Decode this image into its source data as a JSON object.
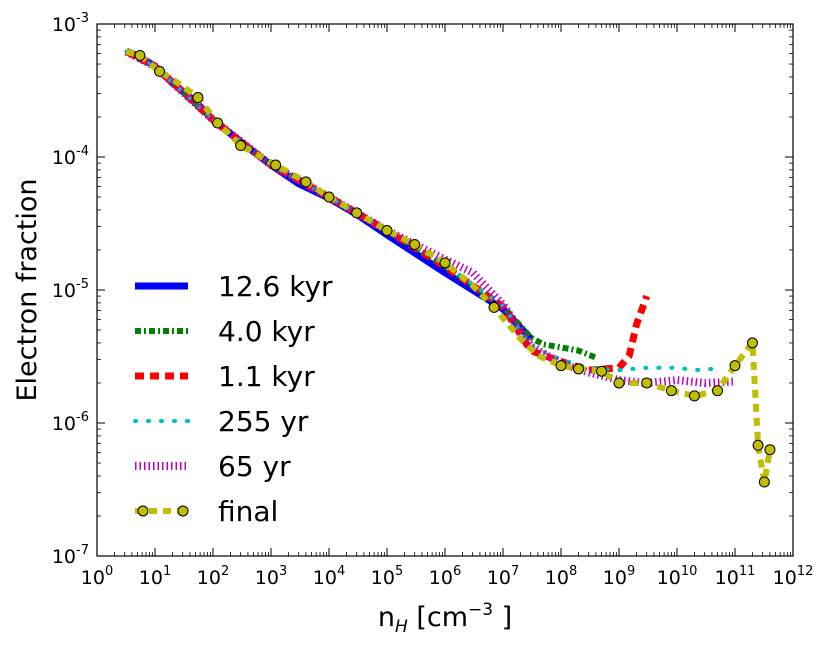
{
  "chart_data": {
    "type": "line",
    "title": "",
    "xlabel": {
      "base": "n",
      "sub": "H",
      "unit_open": " [cm",
      "unit_exp": "−3",
      "unit_close": " ]"
    },
    "ylabel": "Electron fraction",
    "x_scale": "log",
    "y_scale": "log",
    "xlim": [
      1,
      1000000000000.0
    ],
    "ylim": [
      1e-07,
      0.001
    ],
    "x_ticks": [
      {
        "base": "10",
        "exp": "0"
      },
      {
        "base": "10",
        "exp": "1"
      },
      {
        "base": "10",
        "exp": "2"
      },
      {
        "base": "10",
        "exp": "3"
      },
      {
        "base": "10",
        "exp": "4"
      },
      {
        "base": "10",
        "exp": "5"
      },
      {
        "base": "10",
        "exp": "6"
      },
      {
        "base": "10",
        "exp": "7"
      },
      {
        "base": "10",
        "exp": "8"
      },
      {
        "base": "10",
        "exp": "9"
      },
      {
        "base": "10",
        "exp": "10"
      },
      {
        "base": "10",
        "exp": "11"
      },
      {
        "base": "10",
        "exp": "12"
      }
    ],
    "y_ticks": [
      {
        "base": "10",
        "exp": "-7"
      },
      {
        "base": "10",
        "exp": "-6"
      },
      {
        "base": "10",
        "exp": "-5"
      },
      {
        "base": "10",
        "exp": "-4"
      },
      {
        "base": "10",
        "exp": "-3"
      }
    ],
    "legend_position": "lower-left",
    "series": [
      {
        "name": "12.6 kyr",
        "label": "12.6 kyr",
        "color": "#0000ff",
        "style": "solid",
        "x": [
          3.2,
          5,
          10,
          20,
          50,
          100,
          300,
          1000,
          3000,
          10000,
          30000,
          100000,
          300000,
          1000000,
          3000000,
          10000000,
          30000000
        ],
        "y": [
          0.00062,
          0.00058,
          0.00048,
          0.00036,
          0.00026,
          0.00019,
          0.00013,
          8.7e-05,
          6.3e-05,
          4.9e-05,
          3.7e-05,
          2.6e-05,
          1.9e-05,
          1.35e-05,
          1e-05,
          7.2e-06,
          4.3e-06
        ]
      },
      {
        "name": "4.0 kyr",
        "label": "4.0 kyr",
        "color": "#007f00",
        "style": "dashdot",
        "x": [
          3.2,
          10,
          100,
          1000,
          10000,
          100000,
          1000000,
          10000000,
          30000000,
          50000000,
          100000000,
          200000000,
          400000000
        ],
        "y": [
          0.00062,
          0.00048,
          0.00019,
          8.7e-05,
          5e-05,
          2.8e-05,
          1.5e-05,
          7.5e-06,
          4.4e-06,
          3.9e-06,
          3.7e-06,
          3.5e-06,
          3.1e-06
        ]
      },
      {
        "name": "1.1 kyr",
        "label": "1.1 kyr",
        "color": "#ff0000",
        "style": "dashed",
        "x": [
          3.2,
          10,
          100,
          1000,
          10000,
          100000,
          1000000,
          10000000,
          30000000,
          100000000,
          300000000,
          1000000000,
          1500000000,
          2000000000,
          3000000000
        ],
        "y": [
          0.00062,
          0.00048,
          0.00019,
          8.7e-05,
          5e-05,
          2.8e-05,
          1.5e-05,
          7.5e-06,
          3.5e-06,
          2.9e-06,
          2.5e-06,
          2.6e-06,
          3.2e-06,
          5.5e-06,
          9e-06
        ]
      },
      {
        "name": "255 yr",
        "label": "255 yr",
        "color": "#00bfbf",
        "style": "dotted",
        "x": [
          3.2,
          10,
          100,
          1000,
          10000,
          100000,
          1000000,
          10000000,
          30000000,
          100000000,
          300000000,
          1000000000,
          3000000000,
          10000000000,
          20000000000,
          40000000000,
          60000000000
        ],
        "y": [
          0.00062,
          0.00048,
          0.00019,
          8.7e-05,
          5e-05,
          2.8e-05,
          1.55e-05,
          7.6e-06,
          3.8e-06,
          3e-06,
          2.6e-06,
          2.5e-06,
          2.6e-06,
          2.6e-06,
          2.5e-06,
          2.55e-06,
          2.5e-06
        ]
      },
      {
        "name": "65 yr",
        "label": "65 yr",
        "color": "#bf00bf",
        "style": "hatched",
        "x": [
          3.2,
          10,
          100,
          1000,
          10000,
          100000,
          1000000,
          3000000,
          10000000,
          30000000,
          100000000,
          300000000,
          1000000000,
          3000000000,
          10000000000,
          30000000000,
          100000000000
        ],
        "y": [
          0.00062,
          0.00048,
          0.00019,
          8.7e-05,
          5e-05,
          2.8e-05,
          1.7e-05,
          1.35e-05,
          7.8e-06,
          3.8e-06,
          2.8e-06,
          2.4e-06,
          2.1e-06,
          2e-06,
          2.1e-06,
          2e-06,
          2.05e-06
        ]
      },
      {
        "name": "final",
        "label": "final",
        "color": "#bfbf00",
        "marker_color": "#bfbf00",
        "style": "dashed-circles",
        "x": [
          3.2,
          5.5,
          12,
          25,
          55,
          120,
          300,
          1200,
          4000,
          10000,
          30000,
          100000,
          300000,
          1000000,
          3000000,
          7000000,
          20000000,
          40000000,
          100000000,
          200000000,
          500000000,
          1000000000,
          3000000000,
          8000000000,
          20000000000,
          50000000000,
          100000000000,
          200000000000,
          250000000000,
          320000000000,
          400000000000
        ],
        "y": [
          0.00062,
          0.00058,
          0.00044,
          0.00036,
          0.00028,
          0.00018,
          0.000122,
          8.7e-05,
          6.5e-05,
          5e-05,
          3.8e-05,
          2.8e-05,
          2.2e-05,
          1.6e-05,
          1.08e-05,
          7.4e-06,
          4.3e-06,
          3.2e-06,
          2.7e-06,
          2.55e-06,
          2.45e-06,
          2e-06,
          2e-06,
          1.75e-06,
          1.6e-06,
          1.75e-06,
          2.7e-06,
          4e-06,
          6.8e-07,
          3.6e-07,
          6.3e-07
        ],
        "marker_x": [
          5.5,
          12,
          55,
          120,
          300,
          1200,
          4000,
          10000,
          30000,
          100000,
          300000,
          1000000,
          7000000,
          100000000,
          200000000,
          500000000,
          1000000000,
          3000000000,
          8000000000,
          20000000000,
          50000000000,
          100000000000,
          200000000000,
          250000000000,
          320000000000,
          400000000000
        ],
        "marker_y": [
          0.00058,
          0.00044,
          0.00028,
          0.00018,
          0.000122,
          8.7e-05,
          6.5e-05,
          5e-05,
          3.8e-05,
          2.8e-05,
          2.2e-05,
          1.6e-05,
          7.4e-06,
          2.7e-06,
          2.55e-06,
          2.45e-06,
          2e-06,
          2e-06,
          1.75e-06,
          1.6e-06,
          1.75e-06,
          2.7e-06,
          4e-06,
          6.8e-07,
          3.6e-07,
          6.3e-07
        ]
      }
    ]
  }
}
